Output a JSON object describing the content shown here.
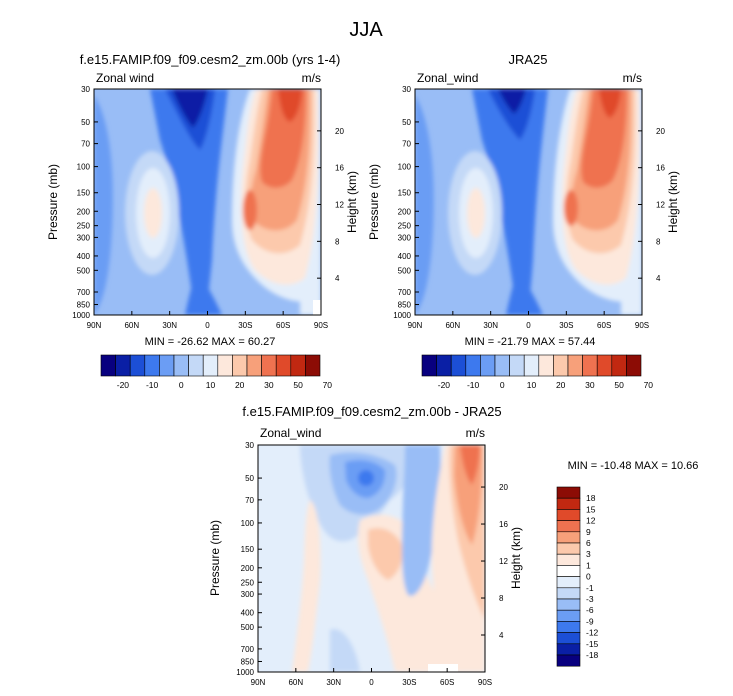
{
  "figure_title": "JJA",
  "pressure_ticks": [
    30,
    50,
    70,
    100,
    150,
    200,
    250,
    300,
    400,
    500,
    700,
    850,
    1000
  ],
  "height_ticks": [
    4,
    8,
    12,
    16,
    20
  ],
  "lat_ticks": [
    "90N",
    "60N",
    "30N",
    "0",
    "30S",
    "60S",
    "90S"
  ],
  "colors": {
    "main": [
      "#08007f",
      "#0a1fa5",
      "#1c4fd6",
      "#3d79ee",
      "#6b9df4",
      "#99bdf6",
      "#c4d9f7",
      "#e3eefb",
      "#fde8dc",
      "#fcc9ac",
      "#f7a07a",
      "#ef7250",
      "#e04a2a",
      "#c12811",
      "#8c0c05"
    ],
    "diff": [
      "#08007f",
      "#0a1fa5",
      "#1c4fd6",
      "#3d79ee",
      "#6b9df4",
      "#99bdf6",
      "#c4d9f7",
      "#e3eefb",
      "#ffffff",
      "#fde8dc",
      "#fcc9ac",
      "#f7a07a",
      "#ef7250",
      "#e04a2a",
      "#c12811",
      "#8c0c05"
    ]
  },
  "panels": [
    {
      "title": "f.e15.FAMIP.f09_f09.cesm2_zm.00b (yrs 1-4)",
      "left_label": "Zonal wind",
      "right_label": "m/s",
      "y_label": "Pressure (mb)",
      "y2_label": "Height (km)",
      "min_max_text": "MIN = -26.62  MAX = 60.27"
    },
    {
      "title": "JRA25",
      "left_label": "Zonal_wind",
      "right_label": "m/s",
      "y_label": "Pressure (mb)",
      "y2_label": "Height (km)",
      "min_max_text": "MIN = -21.79  MAX =  57.44"
    },
    {
      "title": "f.e15.FAMIP.f09_f09.cesm2_zm.00b - JRA25",
      "left_label": "Zonal_wind",
      "right_label": "m/s",
      "y_label": "Pressure (mb)",
      "y2_label": "Height (km)",
      "min_max_text": "MIN = -10.48  MAX =  10.66"
    }
  ],
  "colorbar_main_labels": [
    "-20",
    "-10",
    "0",
    "10",
    "20",
    "30",
    "50",
    "70"
  ],
  "colorbar_diff_labels": [
    "18",
    "15",
    "12",
    "9",
    "6",
    "3",
    "1",
    "0",
    "-1",
    "-3",
    "-6",
    "-9",
    "-12",
    "-15",
    "-18"
  ],
  "chart_data": [
    {
      "type": "heatmap",
      "title": "f.e15.FAMIP.f09_f09.cesm2_zm.00b (yrs 1-4)",
      "variable": "Zonal wind",
      "units": "m/s",
      "xlabel": "",
      "ylabel": "Pressure (mb)",
      "y2label": "Height (km)",
      "x_ticks": [
        "90N",
        "60N",
        "30N",
        "0",
        "30S",
        "60S",
        "90S"
      ],
      "y_ticks": [
        30,
        50,
        70,
        100,
        150,
        200,
        250,
        300,
        400,
        500,
        700,
        850,
        1000
      ],
      "y2_ticks": [
        4,
        8,
        12,
        16,
        20
      ],
      "ylim": [
        1000,
        30
      ],
      "y_scale": "log",
      "min": -26.62,
      "max": 60.27,
      "contour_levels": [
        -20,
        -15,
        -10,
        -5,
        0,
        5,
        10,
        15,
        20,
        25,
        30,
        40,
        50,
        60,
        70
      ],
      "features": [
        {
          "kind": "westerly jet",
          "lat": "30S-60S",
          "pressure_mb": "30-200",
          "approx_value": 55
        },
        {
          "kind": "westerly jet",
          "lat": "45N",
          "pressure_mb": 200,
          "approx_value": 20
        },
        {
          "kind": "easterlies",
          "lat": "15N-30N",
          "pressure_mb": "30-70",
          "approx_value": -25
        }
      ]
    },
    {
      "type": "heatmap",
      "title": "JRA25",
      "variable": "Zonal_wind",
      "units": "m/s",
      "xlabel": "",
      "ylabel": "Pressure (mb)",
      "y2label": "Height (km)",
      "x_ticks": [
        "90N",
        "60N",
        "30N",
        "0",
        "30S",
        "60S",
        "90S"
      ],
      "y_ticks": [
        30,
        50,
        70,
        100,
        150,
        200,
        250,
        300,
        400,
        500,
        700,
        850,
        1000
      ],
      "y2_ticks": [
        4,
        8,
        12,
        16,
        20
      ],
      "ylim": [
        1000,
        30
      ],
      "y_scale": "log",
      "min": -21.79,
      "max": 57.44,
      "contour_levels": [
        -20,
        -15,
        -10,
        -5,
        0,
        5,
        10,
        15,
        20,
        25,
        30,
        40,
        50,
        60,
        70
      ],
      "features": [
        {
          "kind": "westerly jet",
          "lat": "30S-60S",
          "pressure_mb": "30-200",
          "approx_value": 52
        },
        {
          "kind": "westerly jet",
          "lat": "45N",
          "pressure_mb": 200,
          "approx_value": 20
        },
        {
          "kind": "easterlies",
          "lat": "15N-30N",
          "pressure_mb": "30-70",
          "approx_value": -20
        }
      ]
    },
    {
      "type": "heatmap",
      "title": "f.e15.FAMIP.f09_f09.cesm2_zm.00b - JRA25",
      "variable": "Zonal_wind",
      "units": "m/s",
      "xlabel": "",
      "ylabel": "Pressure (mb)",
      "y2label": "Height (km)",
      "x_ticks": [
        "90N",
        "60N",
        "30N",
        "0",
        "30S",
        "60S",
        "90S"
      ],
      "y_ticks": [
        30,
        50,
        70,
        100,
        150,
        200,
        250,
        300,
        400,
        500,
        700,
        850,
        1000
      ],
      "y2_ticks": [
        4,
        8,
        12,
        16,
        20
      ],
      "ylim": [
        1000,
        30
      ],
      "y_scale": "log",
      "min": -10.48,
      "max": 10.66,
      "contour_levels": [
        -18,
        -15,
        -12,
        -9,
        -6,
        -3,
        -1,
        0,
        1,
        3,
        6,
        9,
        12,
        15,
        18
      ],
      "features": [
        {
          "kind": "positive bias",
          "lat": "60S-75S",
          "pressure_mb": "30-100",
          "approx_value": 9
        },
        {
          "kind": "negative bias",
          "lat": "0-30N",
          "pressure_mb": "30-100",
          "approx_value": -6
        }
      ]
    }
  ]
}
